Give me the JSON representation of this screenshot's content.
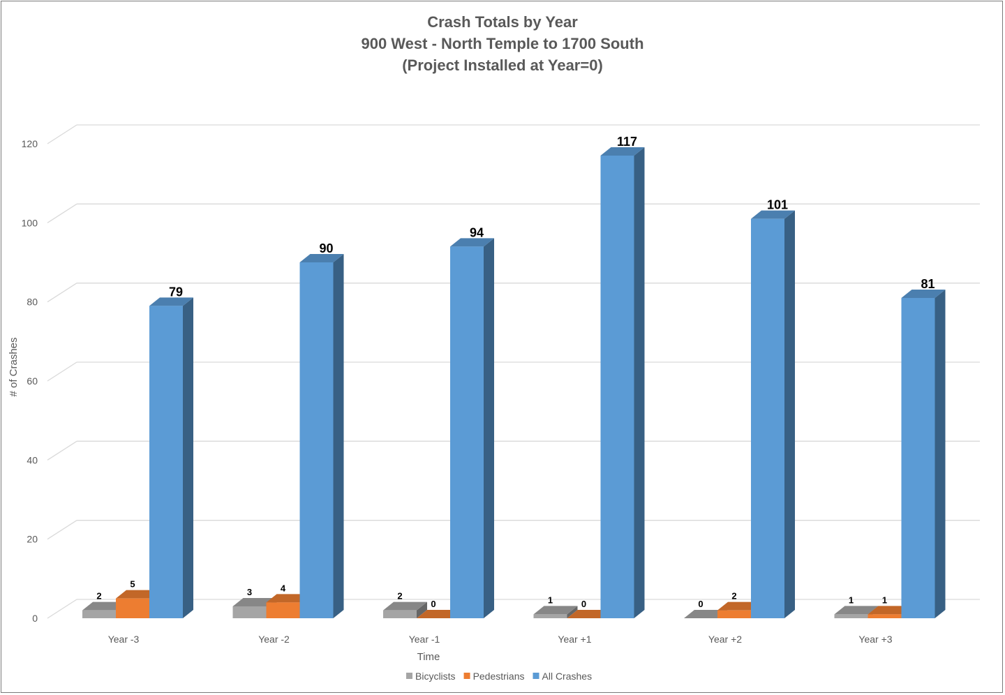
{
  "chart_data": {
    "type": "bar",
    "title": "Crash Totals by Year",
    "subtitle_lines": [
      "900 West - North Temple to 1700 South",
      "(Project Installed at Year=0)"
    ],
    "xlabel": "Time",
    "ylabel": "# of Crashes",
    "ylim": [
      0,
      120
    ],
    "yticks": [
      0,
      20,
      40,
      60,
      80,
      100,
      120
    ],
    "grid": true,
    "legend_position": "bottom",
    "three_d": true,
    "categories": [
      "Year -3",
      "Year -2",
      "Year -1",
      "Year +1",
      "Year +2",
      "Year +3"
    ],
    "series": [
      {
        "name": "Bicyclists",
        "values": [
          2,
          3,
          2,
          1,
          0,
          1
        ],
        "color": "#a5a5a5",
        "label_style": "small"
      },
      {
        "name": "Pedestrians",
        "values": [
          5,
          4,
          0,
          0,
          2,
          1
        ],
        "color": "#ed7d31",
        "label_style": "small"
      },
      {
        "name": "All Crashes",
        "values": [
          79,
          90,
          94,
          117,
          101,
          81
        ],
        "color": "#5b9bd5",
        "label_style": "big"
      }
    ]
  }
}
